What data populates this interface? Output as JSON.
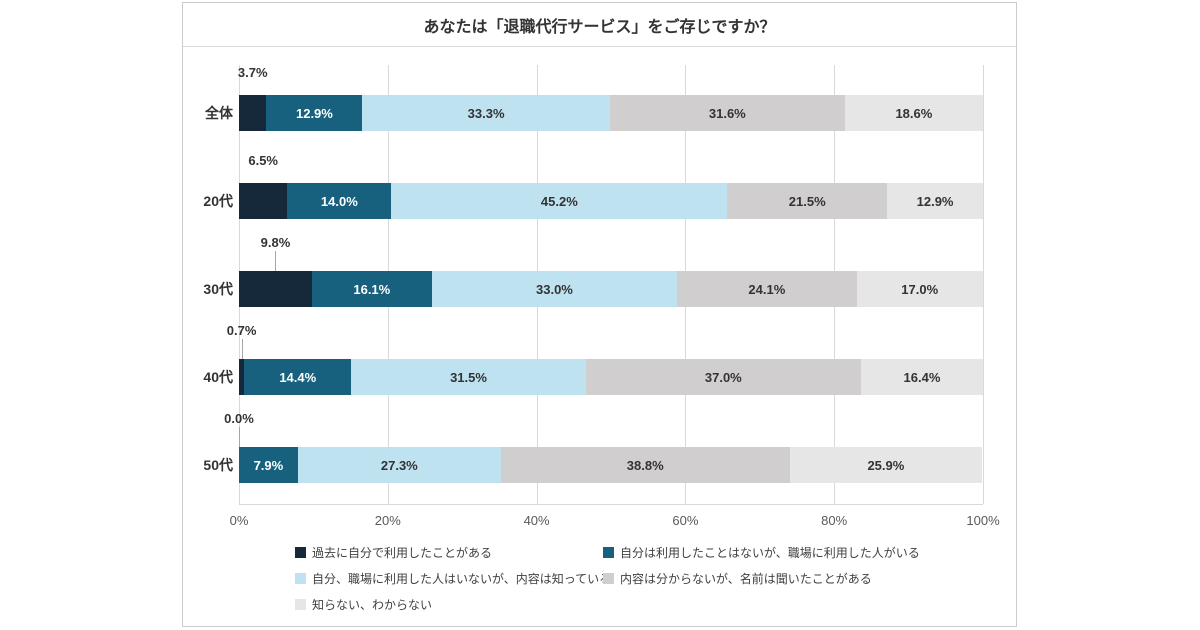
{
  "chart_data": {
    "type": "bar",
    "orientation": "horizontal",
    "stacked": true,
    "title": "あなたは「退職代行サービス」をご存じですか？",
    "categories": [
      "全体",
      "20代",
      "30代",
      "40代",
      "50代"
    ],
    "series": [
      {
        "name": "過去に自分で利用したことがある",
        "color": "#15293b",
        "label_color": "#333333",
        "label_position": "outside",
        "values": [
          3.7,
          6.5,
          9.8,
          0.7,
          0.0
        ]
      },
      {
        "name": "自分は利用したことはないが、職場に利用した人がいる",
        "color": "#17617e",
        "label_color": "#ffffff",
        "label_position": "inside",
        "values": [
          12.9,
          14.0,
          16.1,
          14.4,
          7.9
        ]
      },
      {
        "name": "自分、職場に利用した人はいないが、内容は知っている",
        "color": "#bfe2f1",
        "label_color": "#333333",
        "label_position": "inside",
        "values": [
          33.3,
          45.2,
          33.0,
          31.5,
          27.3
        ]
      },
      {
        "name": "内容は分からないが、名前は聞いたことがある",
        "color": "#d0cece",
        "label_color": "#333333",
        "label_position": "inside",
        "values": [
          31.6,
          21.5,
          24.1,
          37.0,
          38.8
        ]
      },
      {
        "name": "知らない、わからない",
        "color": "#e7e6e6",
        "label_color": "#333333",
        "label_position": "inside",
        "values": [
          18.6,
          12.9,
          17.0,
          16.4,
          25.9
        ]
      }
    ],
    "x_ticks": [
      "0%",
      "20%",
      "40%",
      "60%",
      "80%",
      "100%"
    ],
    "xlim": [
      0,
      100
    ],
    "value_suffix": "%",
    "value_decimals": 1,
    "legend_position": "bottom",
    "grid": "vertical"
  },
  "colors": {
    "gridline": "#d9d9d9",
    "axis_text": "#595959",
    "category_text": "#333333",
    "card_border": "#cccccc"
  }
}
